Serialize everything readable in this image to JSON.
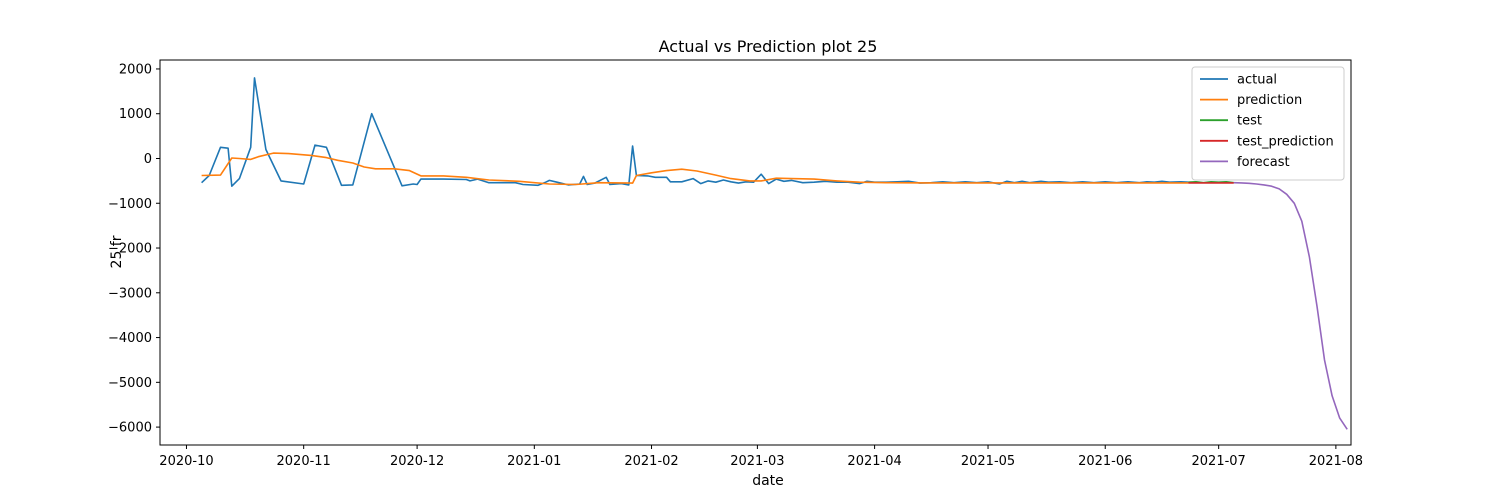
{
  "chart_data": {
    "type": "line",
    "title": "Actual vs Prediction plot 25",
    "xlabel": "date",
    "ylabel": "25 fr",
    "xlim": [
      "2020-09-24",
      "2021-08-05"
    ],
    "ylim": [
      -6400,
      2200
    ],
    "x_ticks": [
      "2020-10",
      "2020-11",
      "2020-12",
      "2021-01",
      "2021-02",
      "2021-03",
      "2021-04",
      "2021-05",
      "2021-06",
      "2021-07",
      "2021-08"
    ],
    "y_ticks": [
      2000,
      1000,
      0,
      -1000,
      -2000,
      -3000,
      -4000,
      -5000,
      -6000
    ],
    "y_tick_labels": [
      "2000",
      "1000",
      "0",
      "−1000",
      "−2000",
      "−3000",
      "−4000",
      "−5000",
      "−6000"
    ],
    "grid": false,
    "legend_position": "top-right",
    "series": [
      {
        "name": "actual",
        "color": "#1f77b4",
        "points": [
          [
            "2020-10-05",
            -540
          ],
          [
            "2020-10-07",
            -380
          ],
          [
            "2020-10-10",
            250
          ],
          [
            "2020-10-12",
            230
          ],
          [
            "2020-10-13",
            -620
          ],
          [
            "2020-10-15",
            -450
          ],
          [
            "2020-10-18",
            250
          ],
          [
            "2020-10-19",
            1800
          ],
          [
            "2020-10-22",
            200
          ],
          [
            "2020-10-26",
            -500
          ],
          [
            "2020-11-01",
            -570
          ],
          [
            "2020-11-04",
            300
          ],
          [
            "2020-11-07",
            250
          ],
          [
            "2020-11-11",
            -600
          ],
          [
            "2020-11-14",
            -590
          ],
          [
            "2020-11-19",
            1000
          ],
          [
            "2020-11-27",
            -610
          ],
          [
            "2020-11-30",
            -570
          ],
          [
            "2020-12-01",
            -580
          ],
          [
            "2020-12-02",
            -460
          ],
          [
            "2020-12-08",
            -460
          ],
          [
            "2020-12-14",
            -470
          ],
          [
            "2020-12-15",
            -500
          ],
          [
            "2020-12-17",
            -460
          ],
          [
            "2020-12-20",
            -540
          ],
          [
            "2020-12-24",
            -540
          ],
          [
            "2020-12-27",
            -540
          ],
          [
            "2020-12-29",
            -580
          ],
          [
            "2021-01-02",
            -600
          ],
          [
            "2021-01-04",
            -530
          ],
          [
            "2021-01-05",
            -490
          ],
          [
            "2021-01-07",
            -530
          ],
          [
            "2021-01-10",
            -590
          ],
          [
            "2021-01-13",
            -570
          ],
          [
            "2021-01-14",
            -400
          ],
          [
            "2021-01-15",
            -580
          ],
          [
            "2021-01-17",
            -550
          ],
          [
            "2021-01-20",
            -420
          ],
          [
            "2021-01-21",
            -580
          ],
          [
            "2021-01-24",
            -560
          ],
          [
            "2021-01-26",
            -590
          ],
          [
            "2021-01-27",
            280
          ],
          [
            "2021-01-28",
            -380
          ],
          [
            "2021-01-31",
            -390
          ],
          [
            "2021-02-02",
            -420
          ],
          [
            "2021-02-05",
            -420
          ],
          [
            "2021-02-06",
            -520
          ],
          [
            "2021-02-09",
            -520
          ],
          [
            "2021-02-12",
            -450
          ],
          [
            "2021-02-14",
            -560
          ],
          [
            "2021-02-16",
            -500
          ],
          [
            "2021-02-18",
            -530
          ],
          [
            "2021-02-20",
            -480
          ],
          [
            "2021-02-22",
            -520
          ],
          [
            "2021-02-24",
            -550
          ],
          [
            "2021-02-26",
            -520
          ],
          [
            "2021-02-28",
            -530
          ],
          [
            "2021-03-02",
            -350
          ],
          [
            "2021-03-04",
            -560
          ],
          [
            "2021-03-06",
            -460
          ],
          [
            "2021-03-08",
            -510
          ],
          [
            "2021-03-10",
            -490
          ],
          [
            "2021-03-13",
            -540
          ],
          [
            "2021-03-16",
            -530
          ],
          [
            "2021-03-19",
            -510
          ],
          [
            "2021-03-22",
            -530
          ],
          [
            "2021-03-25",
            -530
          ],
          [
            "2021-03-28",
            -560
          ],
          [
            "2021-03-30",
            -510
          ],
          [
            "2021-04-01",
            -530
          ],
          [
            "2021-04-04",
            -530
          ],
          [
            "2021-04-07",
            -520
          ],
          [
            "2021-04-10",
            -510
          ],
          [
            "2021-04-13",
            -550
          ],
          [
            "2021-04-16",
            -540
          ],
          [
            "2021-04-19",
            -520
          ],
          [
            "2021-04-22",
            -540
          ],
          [
            "2021-04-25",
            -520
          ],
          [
            "2021-04-28",
            -540
          ],
          [
            "2021-05-01",
            -520
          ],
          [
            "2021-05-04",
            -570
          ],
          [
            "2021-05-06",
            -510
          ],
          [
            "2021-05-08",
            -540
          ],
          [
            "2021-05-10",
            -510
          ],
          [
            "2021-05-12",
            -540
          ],
          [
            "2021-05-15",
            -510
          ],
          [
            "2021-05-17",
            -530
          ],
          [
            "2021-05-20",
            -520
          ],
          [
            "2021-05-23",
            -540
          ],
          [
            "2021-05-26",
            -520
          ],
          [
            "2021-05-29",
            -540
          ],
          [
            "2021-06-01",
            -520
          ],
          [
            "2021-06-04",
            -540
          ],
          [
            "2021-06-07",
            -520
          ],
          [
            "2021-06-10",
            -540
          ],
          [
            "2021-06-12",
            -520
          ],
          [
            "2021-06-14",
            -530
          ],
          [
            "2021-06-16",
            -510
          ],
          [
            "2021-06-18",
            -530
          ],
          [
            "2021-06-21",
            -520
          ],
          [
            "2021-06-23",
            -530
          ]
        ]
      },
      {
        "name": "prediction",
        "color": "#ff7f0e",
        "points": [
          [
            "2020-10-05",
            -380
          ],
          [
            "2020-10-10",
            -370
          ],
          [
            "2020-10-13",
            10
          ],
          [
            "2020-10-15",
            0
          ],
          [
            "2020-10-18",
            -20
          ],
          [
            "2020-10-20",
            40
          ],
          [
            "2020-10-24",
            120
          ],
          [
            "2020-10-28",
            110
          ],
          [
            "2020-11-03",
            70
          ],
          [
            "2020-11-07",
            20
          ],
          [
            "2020-11-10",
            -40
          ],
          [
            "2020-11-14",
            -100
          ],
          [
            "2020-11-17",
            -190
          ],
          [
            "2020-11-20",
            -230
          ],
          [
            "2020-11-25",
            -230
          ],
          [
            "2020-11-29",
            -270
          ],
          [
            "2020-12-02",
            -390
          ],
          [
            "2020-12-08",
            -390
          ],
          [
            "2020-12-14",
            -420
          ],
          [
            "2020-12-20",
            -480
          ],
          [
            "2020-12-28",
            -510
          ],
          [
            "2021-01-05",
            -570
          ],
          [
            "2021-01-12",
            -580
          ],
          [
            "2021-01-18",
            -540
          ],
          [
            "2021-01-27",
            -550
          ],
          [
            "2021-01-28",
            -380
          ],
          [
            "2021-02-01",
            -320
          ],
          [
            "2021-02-05",
            -270
          ],
          [
            "2021-02-09",
            -240
          ],
          [
            "2021-02-13",
            -280
          ],
          [
            "2021-02-18",
            -370
          ],
          [
            "2021-02-22",
            -450
          ],
          [
            "2021-02-27",
            -500
          ],
          [
            "2021-03-02",
            -500
          ],
          [
            "2021-03-06",
            -440
          ],
          [
            "2021-03-10",
            -450
          ],
          [
            "2021-03-16",
            -460
          ],
          [
            "2021-03-22",
            -500
          ],
          [
            "2021-03-28",
            -530
          ],
          [
            "2021-04-04",
            -540
          ],
          [
            "2021-04-15",
            -545
          ],
          [
            "2021-04-30",
            -545
          ],
          [
            "2021-05-20",
            -545
          ],
          [
            "2021-06-10",
            -545
          ],
          [
            "2021-06-23",
            -545
          ]
        ]
      },
      {
        "name": "test",
        "color": "#2ca02c",
        "points": [
          [
            "2021-06-23",
            -530
          ],
          [
            "2021-06-25",
            -520
          ],
          [
            "2021-06-27",
            -540
          ],
          [
            "2021-06-29",
            -520
          ],
          [
            "2021-07-01",
            -530
          ],
          [
            "2021-07-03",
            -520
          ],
          [
            "2021-07-05",
            -540
          ]
        ]
      },
      {
        "name": "test_prediction",
        "color": "#d62728",
        "points": [
          [
            "2021-06-23",
            -545
          ],
          [
            "2021-06-27",
            -545
          ],
          [
            "2021-07-01",
            -545
          ],
          [
            "2021-07-05",
            -545
          ]
        ]
      },
      {
        "name": "forecast",
        "color": "#9467bd",
        "points": [
          [
            "2021-07-05",
            -540
          ],
          [
            "2021-07-07",
            -545
          ],
          [
            "2021-07-09",
            -555
          ],
          [
            "2021-07-11",
            -570
          ],
          [
            "2021-07-13",
            -590
          ],
          [
            "2021-07-15",
            -620
          ],
          [
            "2021-07-17",
            -680
          ],
          [
            "2021-07-19",
            -800
          ],
          [
            "2021-07-21",
            -1000
          ],
          [
            "2021-07-23",
            -1400
          ],
          [
            "2021-07-25",
            -2200
          ],
          [
            "2021-07-27",
            -3300
          ],
          [
            "2021-07-29",
            -4500
          ],
          [
            "2021-07-31",
            -5300
          ],
          [
            "2021-08-02",
            -5800
          ],
          [
            "2021-08-04",
            -6050
          ]
        ]
      }
    ]
  }
}
